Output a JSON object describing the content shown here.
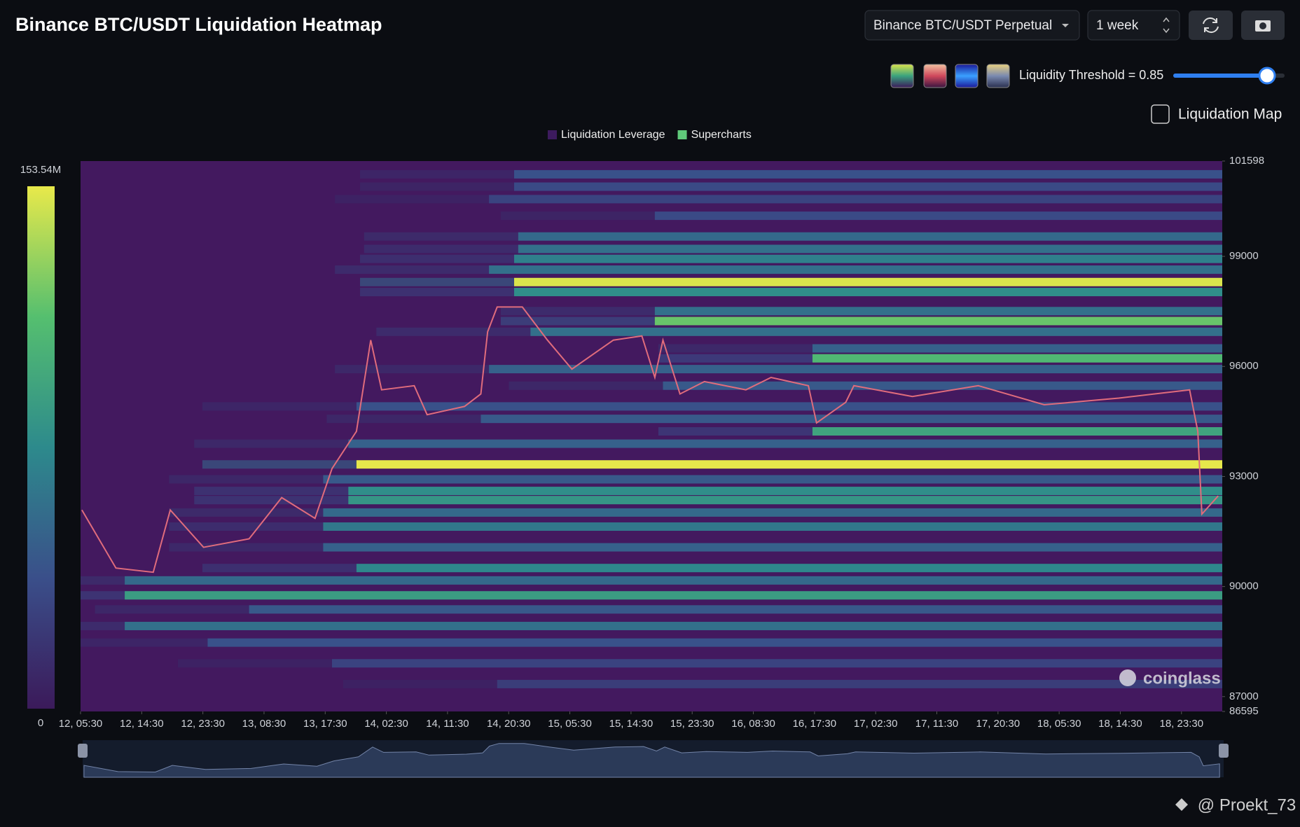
{
  "header": {
    "title": "Binance BTC/USDT Liquidation Heatmap",
    "pair": "Binance BTC/USDT Perpetual",
    "period": "1 week",
    "threshold": "Liquidity Threshold = 0.85",
    "map_toggle": "Liquidation Map"
  },
  "chart_data": {
    "type": "heatmap",
    "legend": [
      {
        "name": "Liquidation Leverage",
        "color": "#3d1b5e"
      },
      {
        "name": "Supercharts",
        "color": "#5fc97a"
      }
    ],
    "background": "#43195f",
    "xlim": [
      0,
      168
    ],
    "xticks": [
      {
        "value": 0,
        "label": "12, 05:30"
      },
      {
        "value": 9,
        "label": "12, 14:30"
      },
      {
        "value": 18,
        "label": "12, 23:30"
      },
      {
        "value": 27,
        "label": "13, 08:30"
      },
      {
        "value": 36,
        "label": "13, 17:30"
      },
      {
        "value": 45,
        "label": "14, 02:30"
      },
      {
        "value": 54,
        "label": "14, 11:30"
      },
      {
        "value": 63,
        "label": "14, 20:30"
      },
      {
        "value": 72,
        "label": "15, 05:30"
      },
      {
        "value": 81,
        "label": "15, 14:30"
      },
      {
        "value": 90,
        "label": "15, 23:30"
      },
      {
        "value": 99,
        "label": "16, 08:30"
      },
      {
        "value": 108,
        "label": "16, 17:30"
      },
      {
        "value": 117,
        "label": "17, 02:30"
      },
      {
        "value": 126,
        "label": "17, 11:30"
      },
      {
        "value": 135,
        "label": "17, 20:30"
      },
      {
        "value": 144,
        "label": "18, 05:30"
      },
      {
        "value": 153,
        "label": "18, 14:30"
      },
      {
        "value": 162,
        "label": "18, 23:30"
      }
    ],
    "ylim": [
      86595,
      101598
    ],
    "yticks": [
      86595,
      87000,
      90000,
      93000,
      96000,
      99000,
      101598
    ],
    "colorbar": {
      "lim": [
        0,
        153.54
      ],
      "ticks": [
        0,
        {
          "value": 153.54,
          "label": "153.54M"
        }
      ],
      "colors": [
        "#3b1a5a",
        "#3a4f8a",
        "#2d8a8c",
        "#55bf6f",
        "#e8e94a"
      ]
    },
    "bands": [
      {
        "price": 101237,
        "start": 63.8,
        "value": 40
      },
      {
        "price": 100900,
        "start": 63.8,
        "value": 35
      },
      {
        "price": 100560,
        "start": 60.1,
        "value": 30
      },
      {
        "price": 100107,
        "start": 84.5,
        "value": 35
      },
      {
        "price": 99542,
        "start": 64.4,
        "value": 55
      },
      {
        "price": 99203,
        "start": 64.4,
        "value": 60
      },
      {
        "price": 98932,
        "start": 63.8,
        "value": 70
      },
      {
        "price": 98638,
        "start": 60.1,
        "value": 60
      },
      {
        "price": 98300,
        "start": 63.8,
        "value": 150
      },
      {
        "price": 98028,
        "start": 63.8,
        "value": 80
      },
      {
        "price": 97508,
        "start": 84.5,
        "value": 60
      },
      {
        "price": 97237,
        "start": 84.5,
        "value": 120
      },
      {
        "price": 96944,
        "start": 66.2,
        "value": 60
      },
      {
        "price": 96492,
        "start": 107.7,
        "value": 50
      },
      {
        "price": 96221,
        "start": 107.7,
        "value": 110
      },
      {
        "price": 95927,
        "start": 60.1,
        "value": 50
      },
      {
        "price": 95475,
        "start": 85.7,
        "value": 45
      },
      {
        "price": 94910,
        "start": 40.6,
        "value": 40
      },
      {
        "price": 94571,
        "start": 58.9,
        "value": 45
      },
      {
        "price": 94230,
        "start": 107.7,
        "value": 95
      },
      {
        "price": 93894,
        "start": 39.4,
        "value": 50
      },
      {
        "price": 93329,
        "start": 40.6,
        "value": 153
      },
      {
        "price": 92923,
        "start": 35.7,
        "value": 45
      },
      {
        "price": 92606,
        "start": 39.4,
        "value": 80
      },
      {
        "price": 92357,
        "start": 39.4,
        "value": 85
      },
      {
        "price": 92018,
        "start": 35.7,
        "value": 55
      },
      {
        "price": 91634,
        "start": 35.7,
        "value": 65
      },
      {
        "price": 91070,
        "start": 35.7,
        "value": 50
      },
      {
        "price": 90505,
        "start": 40.6,
        "value": 75
      },
      {
        "price": 90167,
        "start": 6.5,
        "value": 55
      },
      {
        "price": 89760,
        "start": 6.5,
        "value": 90
      },
      {
        "price": 89376,
        "start": 24.8,
        "value": 45
      },
      {
        "price": 88924,
        "start": 6.5,
        "value": 60
      },
      {
        "price": 88472,
        "start": 18.7,
        "value": 40
      },
      {
        "price": 87907,
        "start": 37,
        "value": 30
      },
      {
        "price": 87342,
        "start": 61.3,
        "value": 25
      }
    ],
    "price": {
      "color": "#e06c7c",
      "x": [
        0.2,
        5.2,
        10.7,
        13.2,
        18.1,
        24.8,
        29.6,
        34.5,
        37,
        40.6,
        42.7,
        44.3,
        49.1,
        51,
        56.5,
        58.9,
        59.9,
        61.3,
        65,
        68.7,
        72.3,
        78.4,
        82.6,
        84.5,
        85.7,
        88.2,
        91.8,
        97.9,
        101.6,
        107.1,
        108.3,
        112.6,
        113.8,
        122.4,
        132.1,
        141.8,
        152.8,
        163.2,
        164.4,
        165,
        167.4
      ],
      "values": [
        92086,
        90505,
        90390,
        92086,
        91070,
        91300,
        92425,
        91860,
        93215,
        94230,
        96718,
        95362,
        95475,
        94685,
        94910,
        95250,
        96944,
        97620,
        97620,
        96718,
        95927,
        96718,
        96831,
        95700,
        96718,
        95250,
        95588,
        95362,
        95700,
        95475,
        94460,
        95023,
        95475,
        95181,
        95475,
        94956,
        95137,
        95362,
        94230,
        91973,
        92470
      ]
    },
    "watermark": "coinglass"
  },
  "footer": {
    "credit": "@ Proekt_73"
  }
}
